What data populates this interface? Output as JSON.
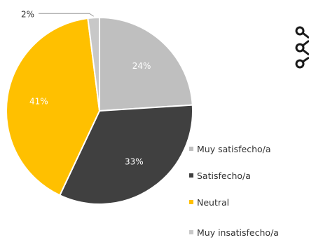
{
  "chart_data": {
    "type": "pie",
    "categories": [
      "Muy satisfecho/a",
      "Satisfecho/a",
      "Neutral",
      "Muy insatisfecho/a"
    ],
    "values": [
      24,
      33,
      41,
      2
    ],
    "labels": [
      "24%",
      "33%",
      "41%",
      "2%"
    ],
    "colors": [
      "#bfbfbf",
      "#404040",
      "#ffc000",
      "#c8c8c8"
    ],
    "legend_position": "right-bottom"
  },
  "legend": {
    "items": [
      {
        "label": "Muy satisfecho/a",
        "color": "#bfbfbf"
      },
      {
        "label": "Satisfecho/a",
        "color": "#404040"
      },
      {
        "label": "Neutral",
        "color": "#ffc000"
      },
      {
        "label": "Muy insatisfecho/a",
        "color": "#c8c8c8"
      }
    ]
  },
  "toolbar": {
    "icon": "share-icon"
  }
}
